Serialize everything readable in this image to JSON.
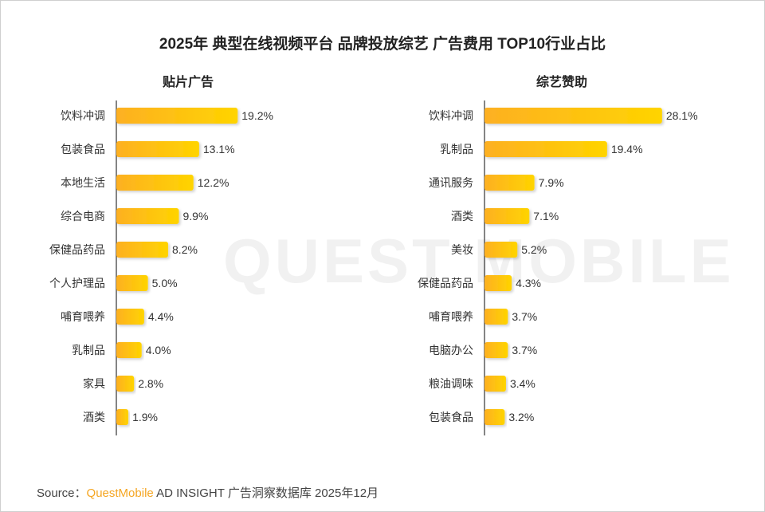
{
  "chart_data": [
    {
      "type": "bar",
      "orientation": "horizontal",
      "title": "贴片广告",
      "categories": [
        "饮料冲调",
        "包装食品",
        "本地生活",
        "综合电商",
        "保健品药品",
        "个人护理品",
        "哺育喂养",
        "乳制品",
        "家具",
        "酒类"
      ],
      "values": [
        19.2,
        13.1,
        12.2,
        9.9,
        8.2,
        5.0,
        4.4,
        4.0,
        2.8,
        1.9
      ],
      "labels": [
        "19.2%",
        "13.1%",
        "12.2%",
        "9.9%",
        "8.2%",
        "5.0%",
        "4.4%",
        "4.0%",
        "2.8%",
        "1.9%"
      ],
      "unit": "%",
      "xlim": [
        0,
        30
      ]
    },
    {
      "type": "bar",
      "orientation": "horizontal",
      "title": "综艺赞助",
      "categories": [
        "饮料冲调",
        "乳制品",
        "通讯服务",
        "酒类",
        "美妆",
        "保健品药品",
        "哺育喂养",
        "电脑办公",
        "粮油调味",
        "包装食品"
      ],
      "values": [
        28.1,
        19.4,
        7.9,
        7.1,
        5.2,
        4.3,
        3.7,
        3.7,
        3.4,
        3.2
      ],
      "labels": [
        "28.1%",
        "19.4%",
        "7.9%",
        "7.1%",
        "5.2%",
        "4.3%",
        "3.7%",
        "3.7%",
        "3.4%",
        "3.2%"
      ],
      "unit": "%",
      "xlim": [
        0,
        30
      ]
    }
  ],
  "header": {
    "title": "2025年 典型在线视频平台 品牌投放综艺 广告费用  TOP10行业占比"
  },
  "footer": {
    "source_prefix": "Source：",
    "brand": "QuestMobile",
    "source_text": " AD INSIGHT 广告洞察数据库 2025年12月"
  },
  "watermark": "QUEST MOBILE",
  "colors": {
    "bar_start": "#FDB022",
    "bar_end": "#FFD400",
    "text": "#333333",
    "brand": "#F5A623"
  }
}
